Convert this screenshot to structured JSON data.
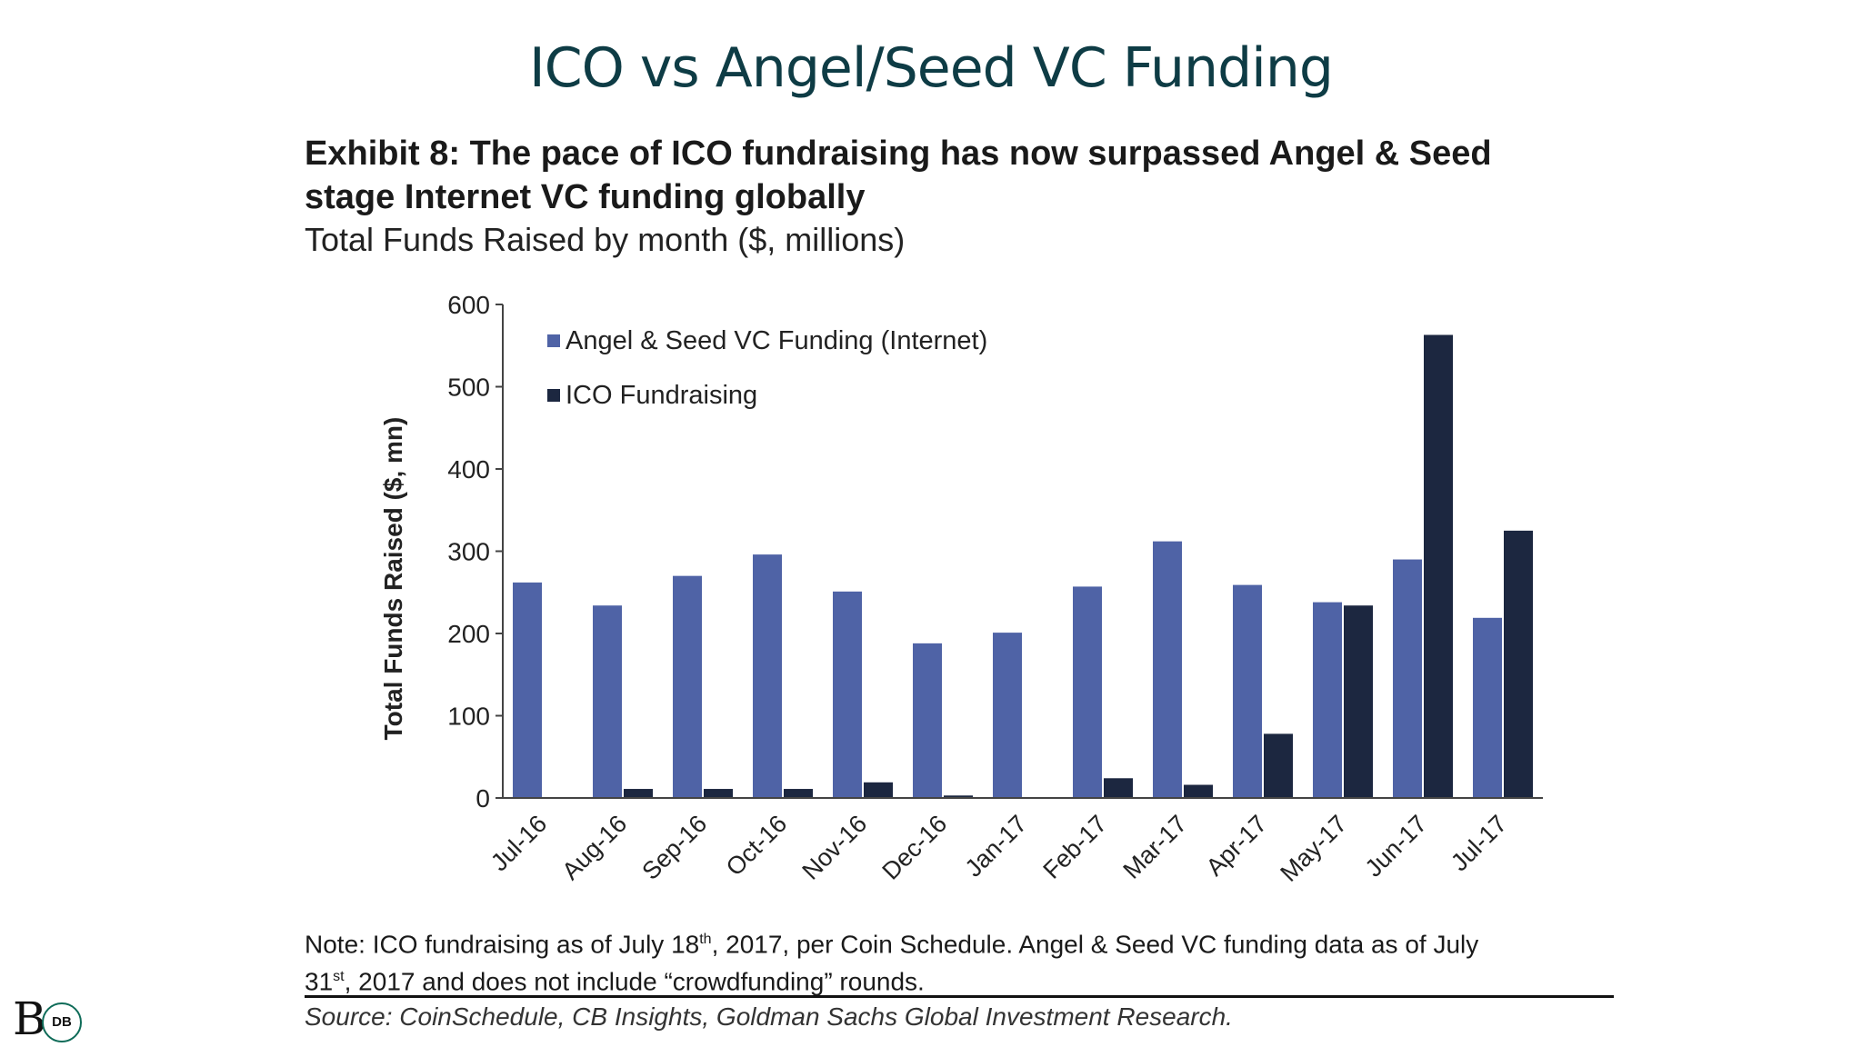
{
  "slide": {
    "title": "ICO vs Angel/Seed VC Funding"
  },
  "exhibit": {
    "title_line1": "Exhibit 8: The pace of ICO fundraising has now surpassed Angel & Seed",
    "title_line2": "stage Internet VC funding globally",
    "subtitle": "Total Funds Raised by month ($, millions)"
  },
  "chart_data": {
    "type": "bar",
    "categories": [
      "Jul-16",
      "Aug-16",
      "Sep-16",
      "Oct-16",
      "Nov-16",
      "Dec-16",
      "Jan-17",
      "Feb-17",
      "Mar-17",
      "Apr-17",
      "May-17",
      "Jun-17",
      "Jul-17"
    ],
    "series": [
      {
        "name": "Angel & Seed VC Funding (Internet)",
        "color": "#4f63a6",
        "values": [
          262,
          234,
          270,
          296,
          251,
          188,
          201,
          257,
          312,
          259,
          238,
          290,
          219
        ]
      },
      {
        "name": "ICO Fundraising",
        "color": "#1c2740",
        "values": [
          0,
          11,
          11,
          11,
          19,
          3,
          1,
          24,
          16,
          78,
          234,
          563,
          325
        ]
      }
    ],
    "ylabel": "Total Funds Raised ($, mn)",
    "xlabel": "",
    "ylim": [
      0,
      600
    ],
    "yticks": [
      0,
      100,
      200,
      300,
      400,
      500,
      600
    ],
    "grid": false,
    "legend": "top-left"
  },
  "note": {
    "part1": "Note: ICO fundraising as of July 18",
    "sup1": "th",
    "part2": ", 2017, per Coin Schedule. Angel & Seed VC funding data as of July",
    "part3": "31",
    "sup2": "st",
    "part4": ", 2017 and does not include “crowdfunding” rounds."
  },
  "source": "Source: CoinSchedule, CB Insights, Goldman Sachs Global Investment Research.",
  "logo": {
    "letter": "B",
    "badge": "DB"
  }
}
